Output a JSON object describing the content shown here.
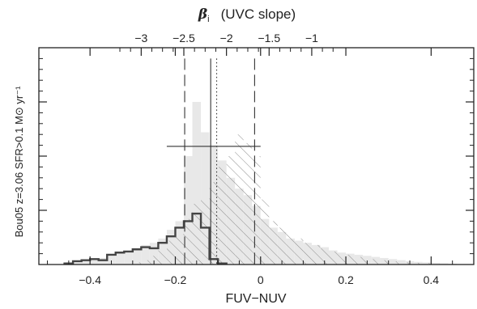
{
  "chart_data": {
    "type": "histogram",
    "title": "",
    "xlabel": "FUV−NUV",
    "x_range": [
      -0.52,
      0.5
    ],
    "x_ticks": [
      -0.4,
      -0.2,
      0,
      0.2,
      0.4
    ],
    "x_tick_labels": [
      "−0.4",
      "−0.2",
      "0",
      "0.2",
      "0.4"
    ],
    "top_axis": {
      "label_symbol": "β",
      "label_subscript": "i",
      "label_text": "(UVC slope)",
      "ticks": [
        -3,
        -2.5,
        -2,
        -1.5,
        -1
      ],
      "tick_labels": [
        "−3",
        "−2.5",
        "−2",
        "−1.5",
        "−1"
      ],
      "mapping": "beta = -2 + 5*(x + 0.08)"
    },
    "ylabel": "Bou05  z=3.06  SFR>0.1 M⊙ yr⁻¹",
    "y_range": [
      0,
      1.0
    ],
    "y_ticks": [
      0.25,
      0.5,
      0.75
    ],
    "grid": false,
    "bin_width": 0.02,
    "series": [
      {
        "name": "",
        "style": "gray filled histogram",
        "color": "#e8e8e8",
        "bins_x0": [
          -0.46,
          -0.44,
          -0.42,
          -0.4,
          -0.38,
          -0.36,
          -0.34,
          -0.32,
          -0.3,
          -0.28,
          -0.26,
          -0.24,
          -0.22,
          -0.2,
          -0.18,
          -0.16,
          -0.14,
          -0.12,
          -0.1,
          -0.08,
          -0.06,
          -0.04,
          -0.02,
          0,
          0.02,
          0.04,
          0.06,
          0.08,
          0.1,
          0.12,
          0.14,
          0.16,
          0.18,
          0.2,
          0.22,
          0.24,
          0.26,
          0.28,
          0.3,
          0.32,
          0.34,
          0.36,
          0.38,
          0.4,
          0.42,
          0.44
        ],
        "values": [
          0.005,
          0.01,
          0.015,
          0.02,
          0.03,
          0.04,
          0.05,
          0.06,
          0.075,
          0.09,
          0.1,
          0.12,
          0.16,
          0.2,
          0.5,
          0.75,
          0.61,
          0.55,
          0.48,
          0.4,
          0.35,
          0.32,
          0.27,
          0.21,
          0.17,
          0.15,
          0.12,
          0.11,
          0.1,
          0.09,
          0.08,
          0.065,
          0.055,
          0.05,
          0.045,
          0.04,
          0.035,
          0.03,
          0.025,
          0.02,
          0.015,
          0.012,
          0.01,
          0.008,
          0.006,
          0.004
        ]
      },
      {
        "name": "",
        "style": "hatched histogram",
        "color": "#888888",
        "bins_x0": [
          -0.3,
          -0.28,
          -0.26,
          -0.24,
          -0.22,
          -0.2,
          -0.18,
          -0.16,
          -0.14,
          -0.12,
          -0.1,
          -0.08,
          -0.06,
          -0.04,
          -0.02,
          0,
          0.02,
          0.04,
          0.06,
          0.08,
          0.1,
          0.12,
          0.14,
          0.16,
          0.18,
          0.2,
          0.22,
          0.24,
          0.26,
          0.28,
          0.3,
          0.32,
          0.34,
          0.36,
          0.38,
          0.4
        ],
        "values": [
          0.01,
          0.02,
          0.04,
          0.07,
          0.11,
          0.14,
          0.21,
          0.28,
          0.3,
          0.38,
          0.45,
          0.5,
          0.6,
          0.56,
          0.5,
          0.3,
          0.2,
          0.17,
          0.14,
          0.12,
          0.1,
          0.09,
          0.075,
          0.06,
          0.05,
          0.045,
          0.035,
          0.03,
          0.025,
          0.02,
          0.015,
          0.012,
          0.01,
          0.008,
          0.006,
          0.004
        ]
      },
      {
        "name": "",
        "style": "thick dark step outline",
        "color": "#444444",
        "bins_x0": [
          -0.46,
          -0.44,
          -0.42,
          -0.4,
          -0.38,
          -0.36,
          -0.34,
          -0.32,
          -0.3,
          -0.28,
          -0.26,
          -0.24,
          -0.22,
          -0.2,
          -0.18,
          -0.16,
          -0.14,
          -0.12,
          -0.1
        ],
        "values": [
          0.005,
          0.015,
          0.02,
          0.025,
          0.02,
          0.045,
          0.055,
          0.06,
          0.07,
          0.08,
          0.075,
          0.1,
          0.13,
          0.17,
          0.2,
          0.235,
          0.17,
          0.025,
          0.005
        ]
      }
    ],
    "vertical_lines": [
      {
        "x": -0.178,
        "style": "dashed",
        "y_top": 0.95
      },
      {
        "x": -0.014,
        "style": "dashed",
        "y_top": 0.95
      },
      {
        "x": -0.117,
        "style": "solid",
        "y_top": 0.95
      },
      {
        "x": -0.103,
        "style": "dotted",
        "y_top": 0.95
      }
    ],
    "horizontal_lines": [
      {
        "x1": -0.22,
        "x2": 0.0,
        "y": 0.545,
        "style": "solid"
      }
    ]
  }
}
